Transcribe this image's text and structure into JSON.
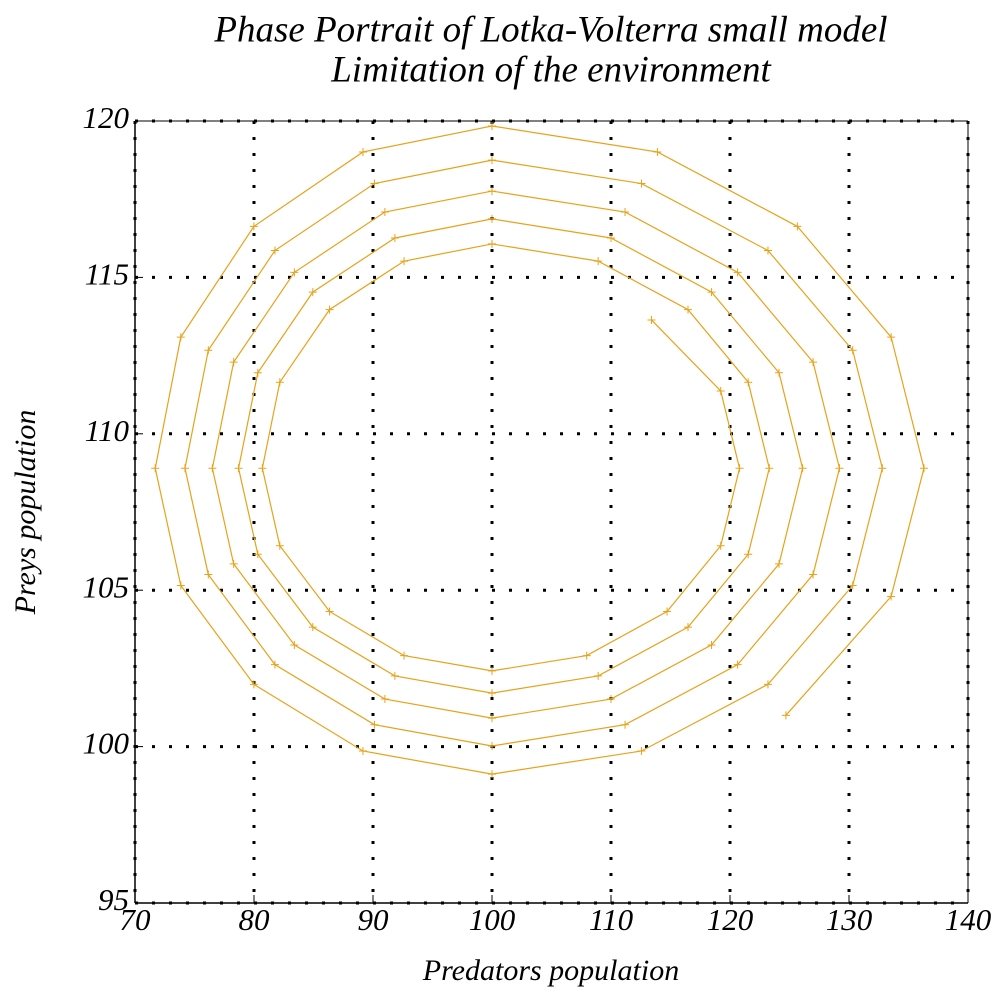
{
  "chart_data": {
    "type": "line",
    "title": "Phase Portrait of Lotka-Volterra small model",
    "subtitle": "Limitation of the environment",
    "x_label": "Predators population",
    "y_label": "Preys population",
    "xlim": [
      70,
      140
    ],
    "xticks": [
      70,
      80,
      90,
      100,
      110,
      120,
      130,
      140
    ],
    "ylim": [
      95,
      120
    ],
    "yticks": [
      95,
      100,
      105,
      110,
      115,
      120
    ],
    "grid": true,
    "series": [
      {
        "color": "#e8a21a",
        "marker": "+",
        "x": [
          124.7,
          133.54,
          136.3,
          133.54,
          125.66,
          113.9,
          100,
          89.16,
          79.99,
          73.85,
          71.7,
          73.85,
          79.99,
          89.16,
          100,
          112.56,
          123.19,
          130.31,
          132.8,
          130.31,
          123.19,
          112.56,
          100,
          90.12,
          81.76,
          76.16,
          74.2,
          76.16,
          81.76,
          90.12,
          100,
          111.18,
          120.64,
          126.98,
          129.2,
          126.98,
          120.64,
          111.18,
          100,
          91.0,
          83.39,
          78.29,
          76.5,
          78.29,
          83.39,
          91.0,
          100,
          110.0,
          118.45,
          124.12,
          126.1,
          124.12,
          118.45,
          110.0,
          100,
          91.84,
          84.94,
          80.32,
          78.7,
          80.32,
          84.94,
          91.84,
          100,
          108.92,
          116.47,
          121.53,
          123.3,
          121.53,
          116.47,
          108.92,
          100,
          92.61,
          86.35,
          82.17,
          80.7,
          82.17,
          86.35,
          92.61,
          100,
          107.96,
          114.71,
          119.22,
          120.8,
          119.22,
          113.4
        ],
        "values": [
          101.0,
          104.8,
          108.9,
          113.09,
          116.63,
          119.01,
          119.84,
          119.01,
          116.63,
          113.09,
          108.9,
          105.15,
          101.99,
          99.86,
          99.12,
          99.86,
          101.99,
          105.15,
          108.9,
          112.67,
          115.86,
          118.0,
          118.75,
          118.0,
          115.86,
          112.67,
          108.9,
          105.5,
          102.62,
          100.7,
          100.02,
          100.7,
          102.62,
          105.5,
          108.9,
          112.29,
          115.16,
          117.09,
          117.76,
          117.09,
          115.16,
          112.29,
          108.9,
          105.84,
          103.25,
          101.52,
          100.91,
          101.52,
          103.25,
          105.84,
          108.9,
          111.95,
          114.53,
          116.26,
          116.87,
          116.26,
          114.53,
          111.95,
          108.9,
          106.15,
          103.82,
          102.26,
          101.71,
          102.26,
          103.82,
          106.15,
          108.9,
          111.65,
          113.97,
          115.52,
          116.07,
          115.52,
          113.97,
          111.65,
          108.9,
          106.42,
          104.32,
          102.91,
          102.42,
          102.91,
          104.32,
          106.42,
          108.9,
          111.37,
          113.64
        ]
      }
    ]
  }
}
